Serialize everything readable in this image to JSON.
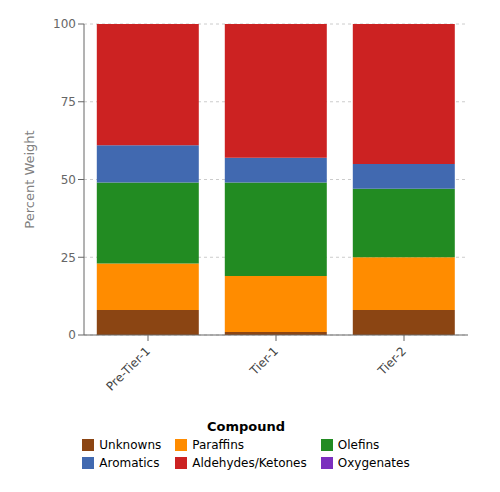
{
  "chart_data": {
    "type": "bar",
    "stacked": true,
    "grid": true,
    "legend": "bottom",
    "legend_title": "Compound",
    "ylabel": "Percent Weight",
    "categories": [
      "Pre-Tier-1",
      "Tier-1",
      "Tier-2"
    ],
    "series": [
      {
        "name": "Unknowns",
        "color": "#8B4513",
        "values": [
          8,
          1,
          8
        ]
      },
      {
        "name": "Paraffins",
        "color": "#FF8C00",
        "values": [
          15,
          18,
          17
        ]
      },
      {
        "name": "Olefins",
        "color": "#228B22",
        "values": [
          26,
          30,
          22
        ]
      },
      {
        "name": "Aromatics",
        "color": "#4169B0",
        "values": [
          12,
          8,
          8
        ]
      },
      {
        "name": "Aldehydes/Ketones",
        "color": "#CC2222",
        "values": [
          39,
          43,
          45
        ]
      },
      {
        "name": "Oxygenates",
        "color": "#7B2FBE",
        "values": [
          null,
          null,
          null
        ]
      }
    ],
    "ylim": [
      0,
      100
    ],
    "yticks": [
      0,
      25,
      50,
      75,
      100
    ]
  }
}
